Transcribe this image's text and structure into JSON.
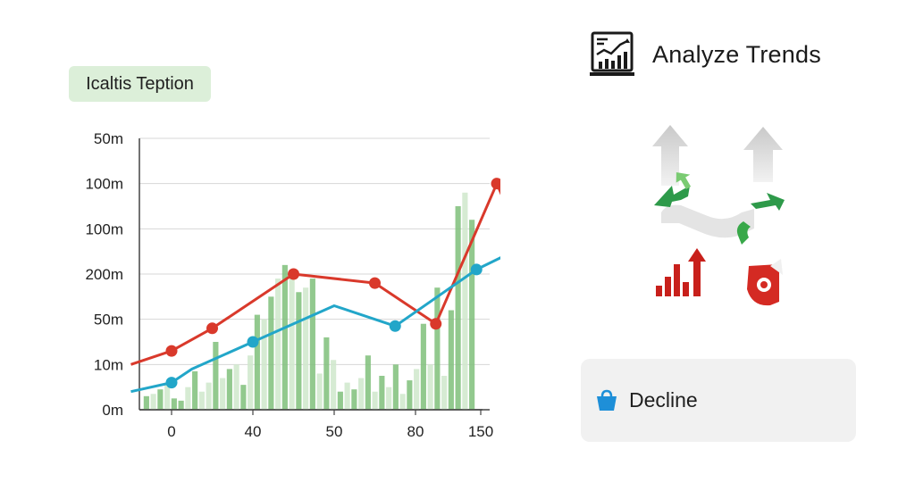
{
  "badge": {
    "label": "Icaltis Teption"
  },
  "header": {
    "title": "Analyze Trends",
    "icon": "chart-report-icon"
  },
  "illustration": {
    "icon": "trend-arrows-icon"
  },
  "decline": {
    "label": "Decline",
    "icon": "basket-icon",
    "icon_color": "#1e8fd8"
  },
  "colors": {
    "red_series": "#d9392b",
    "blue_series": "#22a6c9",
    "bars": "#7fc07a",
    "bars_light": "#cfe8cb"
  },
  "chart_data": {
    "type": "line",
    "y_ticks": [
      "50m",
      "100m",
      "100m",
      "200m",
      "50m",
      "10m",
      "0m"
    ],
    "x_ticks": [
      "0",
      "40",
      "50",
      "80",
      "150"
    ],
    "grid": true,
    "series": [
      {
        "color": "#d9392b",
        "points": [
          [
            -0.5,
            1.0
          ],
          [
            0,
            1.3
          ],
          [
            0.5,
            1.8
          ],
          [
            1.5,
            3.0
          ],
          [
            2.5,
            2.8
          ],
          [
            3.25,
            1.9
          ],
          [
            4.0,
            5.0
          ],
          [
            4.4,
            3.35
          ],
          [
            5.0,
            5.25
          ]
        ]
      },
      {
        "color": "#22a6c9",
        "points": [
          [
            -0.5,
            0.4
          ],
          [
            0,
            0.6
          ],
          [
            0.25,
            0.9
          ],
          [
            1.0,
            1.5
          ],
          [
            2.0,
            2.3
          ],
          [
            2.75,
            1.85
          ],
          [
            3.75,
            3.1
          ],
          [
            5.0,
            4.2
          ]
        ]
      }
    ],
    "bars": [
      0.3,
      0.35,
      0.45,
      0.6,
      0.25,
      0.2,
      0.5,
      0.85,
      0.4,
      0.6,
      1.5,
      0.7,
      0.9,
      1.0,
      0.55,
      1.2,
      2.1,
      2.0,
      2.5,
      2.9,
      3.2,
      3.0,
      2.6,
      2.7,
      2.9,
      0.8,
      1.6,
      1.1,
      0.4,
      0.6,
      0.45,
      0.7,
      1.2,
      0.4,
      0.75,
      0.5,
      1.0,
      0.35,
      0.65,
      0.9,
      1.9,
      1.0,
      2.7,
      0.75,
      2.2,
      4.5,
      4.8,
      4.2
    ],
    "bar_shades": [
      1,
      0,
      1,
      0,
      1,
      1,
      0,
      1,
      0,
      0,
      1,
      0,
      1,
      0,
      1,
      0,
      1,
      0,
      1,
      0,
      1,
      0,
      1,
      0,
      1,
      0,
      1,
      0,
      1,
      0,
      1,
      0,
      1,
      0,
      1,
      0,
      1,
      0,
      1,
      0,
      1,
      0,
      1,
      0,
      1,
      1,
      0,
      1
    ]
  }
}
